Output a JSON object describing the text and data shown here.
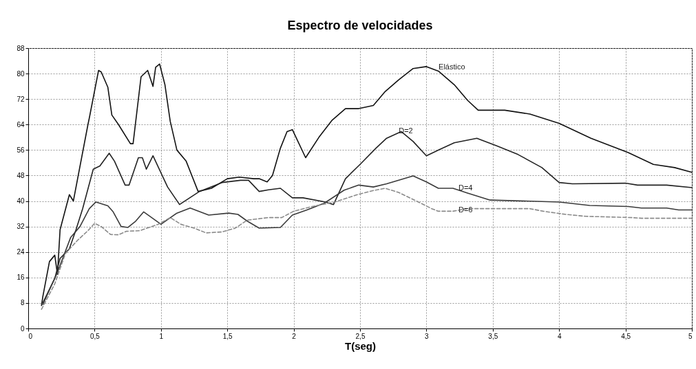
{
  "chart_data": {
    "type": "line",
    "title": "Espectro de velocidades",
    "xlabel": "T(seg)",
    "xlim": [
      0,
      5
    ],
    "xticks": [
      0,
      {
        "value": 0.5,
        "label": "0,5"
      },
      1,
      {
        "value": 1.5,
        "label": "1,5"
      },
      2,
      {
        "value": 2.5,
        "label": "2,5"
      },
      3,
      {
        "value": 3.5,
        "label": "3,5"
      },
      4,
      {
        "value": 4.5,
        "label": "4,5"
      },
      5
    ],
    "ylim": [
      0,
      88
    ],
    "yticks": [
      0,
      8,
      16,
      24,
      32,
      40,
      48,
      56,
      64,
      72,
      80,
      88
    ],
    "grid": true,
    "marker": "none",
    "series": [
      {
        "color": "#111111",
        "line_style": "solid",
        "x": [
          0.1,
          0.11,
          0.16,
          0.2,
          0.22,
          0.24,
          0.31,
          0.34,
          0.45,
          0.46,
          0.53,
          0.55,
          0.6,
          0.63,
          0.68,
          0.77,
          0.79,
          0.85,
          0.9,
          0.94,
          0.96,
          0.99,
          1.03,
          1.07,
          1.12,
          1.19,
          1.28,
          1.38,
          1.5,
          1.59,
          1.7,
          1.74,
          1.8,
          1.84,
          1.9,
          1.95,
          1.99,
          2.09,
          2.19,
          2.29,
          2.39,
          2.49,
          2.6,
          2.69,
          2.79,
          2.9,
          3.0,
          3.09,
          3.21,
          3.31,
          3.39,
          3.59,
          3.78,
          4.0,
          4.24,
          4.52,
          4.71,
          4.87,
          5.0
        ],
        "values": [
          7.2,
          10,
          21,
          23,
          17,
          31,
          42,
          40,
          64,
          66,
          81,
          80.5,
          75.7,
          67,
          64,
          58,
          58,
          79,
          81,
          76,
          82,
          83,
          76.5,
          65,
          56,
          52.5,
          43,
          44,
          47,
          47.5,
          47,
          47,
          46,
          48,
          56.6,
          61.8,
          62.4,
          53.6,
          60,
          65.4,
          69,
          69,
          70,
          74.4,
          78,
          81.6,
          82.2,
          80.8,
          76.5,
          71.6,
          68.5,
          68.5,
          67.3,
          64.4,
          59.7,
          55.2,
          51.5,
          50.5,
          49
        ]
      },
      {
        "color": "#222222",
        "line_style": "solid",
        "x": [
          0.11,
          0.2,
          0.24,
          0.31,
          0.36,
          0.41,
          0.49,
          0.54,
          0.61,
          0.65,
          0.73,
          0.76,
          0.83,
          0.86,
          0.89,
          0.94,
          1.05,
          1.14,
          1.29,
          1.46,
          1.6,
          1.66,
          1.74,
          1.81,
          1.9,
          1.99,
          2.07,
          2.24,
          2.3,
          2.39,
          2.5,
          2.62,
          2.7,
          2.81,
          2.9,
          3.0,
          3.1,
          3.21,
          3.38,
          3.53,
          3.69,
          3.87,
          4.0,
          4.1,
          4.5,
          4.59,
          4.81,
          5.0
        ],
        "values": [
          8,
          15.7,
          22,
          25,
          31,
          37.6,
          50,
          51,
          55,
          52.5,
          45,
          45,
          53.6,
          53.6,
          50,
          54.2,
          44.4,
          38.9,
          43,
          45.8,
          46.5,
          46.5,
          43,
          43.5,
          44,
          41,
          41,
          39.7,
          38.9,
          47,
          51.5,
          56.6,
          59.7,
          61.8,
          58.7,
          54.2,
          56.2,
          58.3,
          59.7,
          57.3,
          54.6,
          50.5,
          45.8,
          45.4,
          45.6,
          45,
          45,
          44.2
        ]
      },
      {
        "color": "#3a3a3a",
        "line_style": "solid",
        "x": [
          0.11,
          0.22,
          0.32,
          0.39,
          0.46,
          0.51,
          0.6,
          0.64,
          0.7,
          0.75,
          0.81,
          0.87,
          0.91,
          1.0,
          1.12,
          1.22,
          1.36,
          1.51,
          1.58,
          1.65,
          1.74,
          1.9,
          1.99,
          2.1,
          2.23,
          2.38,
          2.49,
          2.6,
          2.7,
          2.9,
          3.0,
          3.09,
          3.2,
          3.31,
          3.48,
          4.0,
          4.23,
          4.52,
          4.62,
          4.81,
          4.9,
          5.0
        ],
        "values": [
          7.5,
          17.6,
          28.6,
          32,
          37.6,
          39.7,
          38.5,
          36.6,
          32,
          31.7,
          33.7,
          36.6,
          35.4,
          32.7,
          36.2,
          37.8,
          35.6,
          36.2,
          35.8,
          33.7,
          31.5,
          31.7,
          35.6,
          37.2,
          39.3,
          43.4,
          45,
          44.4,
          45.4,
          47.9,
          46,
          44,
          44,
          42.5,
          40.3,
          39.7,
          38.6,
          38.3,
          37.8,
          37.8,
          37.2,
          37.2
        ]
      },
      {
        "color": "#8a8a8a",
        "line_style": "dashed",
        "x": [
          0.1,
          0.2,
          0.28,
          0.37,
          0.45,
          0.5,
          0.55,
          0.62,
          0.68,
          0.74,
          0.84,
          0.98,
          1.07,
          1.15,
          1.25,
          1.34,
          1.46,
          1.56,
          1.65,
          1.81,
          1.91,
          2.0,
          2.13,
          2.31,
          2.48,
          2.59,
          2.69,
          2.79,
          2.91,
          3.04,
          3.09,
          3.2,
          3.31,
          3.78,
          3.88,
          4.05,
          4.2,
          4.55,
          4.62,
          5.0
        ],
        "values": [
          6,
          14,
          23.5,
          27.6,
          30.7,
          33,
          32,
          29.5,
          29.4,
          30.5,
          30.7,
          32.7,
          34.8,
          32.7,
          31.5,
          30,
          30.3,
          31.5,
          34,
          34.8,
          34.8,
          36.8,
          38.2,
          39.7,
          42,
          43.2,
          44,
          42.7,
          40.3,
          37.6,
          36.8,
          36.8,
          37.6,
          37.6,
          36.8,
          35.8,
          35.2,
          34.8,
          34.6,
          34.6
        ]
      }
    ],
    "annotations": [
      {
        "text": "Elástico",
        "x": 3.05,
        "y": 82
      },
      {
        "text": "D=2",
        "x": 2.75,
        "y": 62
      },
      {
        "text": "D=4",
        "x": 3.2,
        "y": 44
      },
      {
        "text": "D=6",
        "x": 3.2,
        "y": 37
      }
    ]
  }
}
